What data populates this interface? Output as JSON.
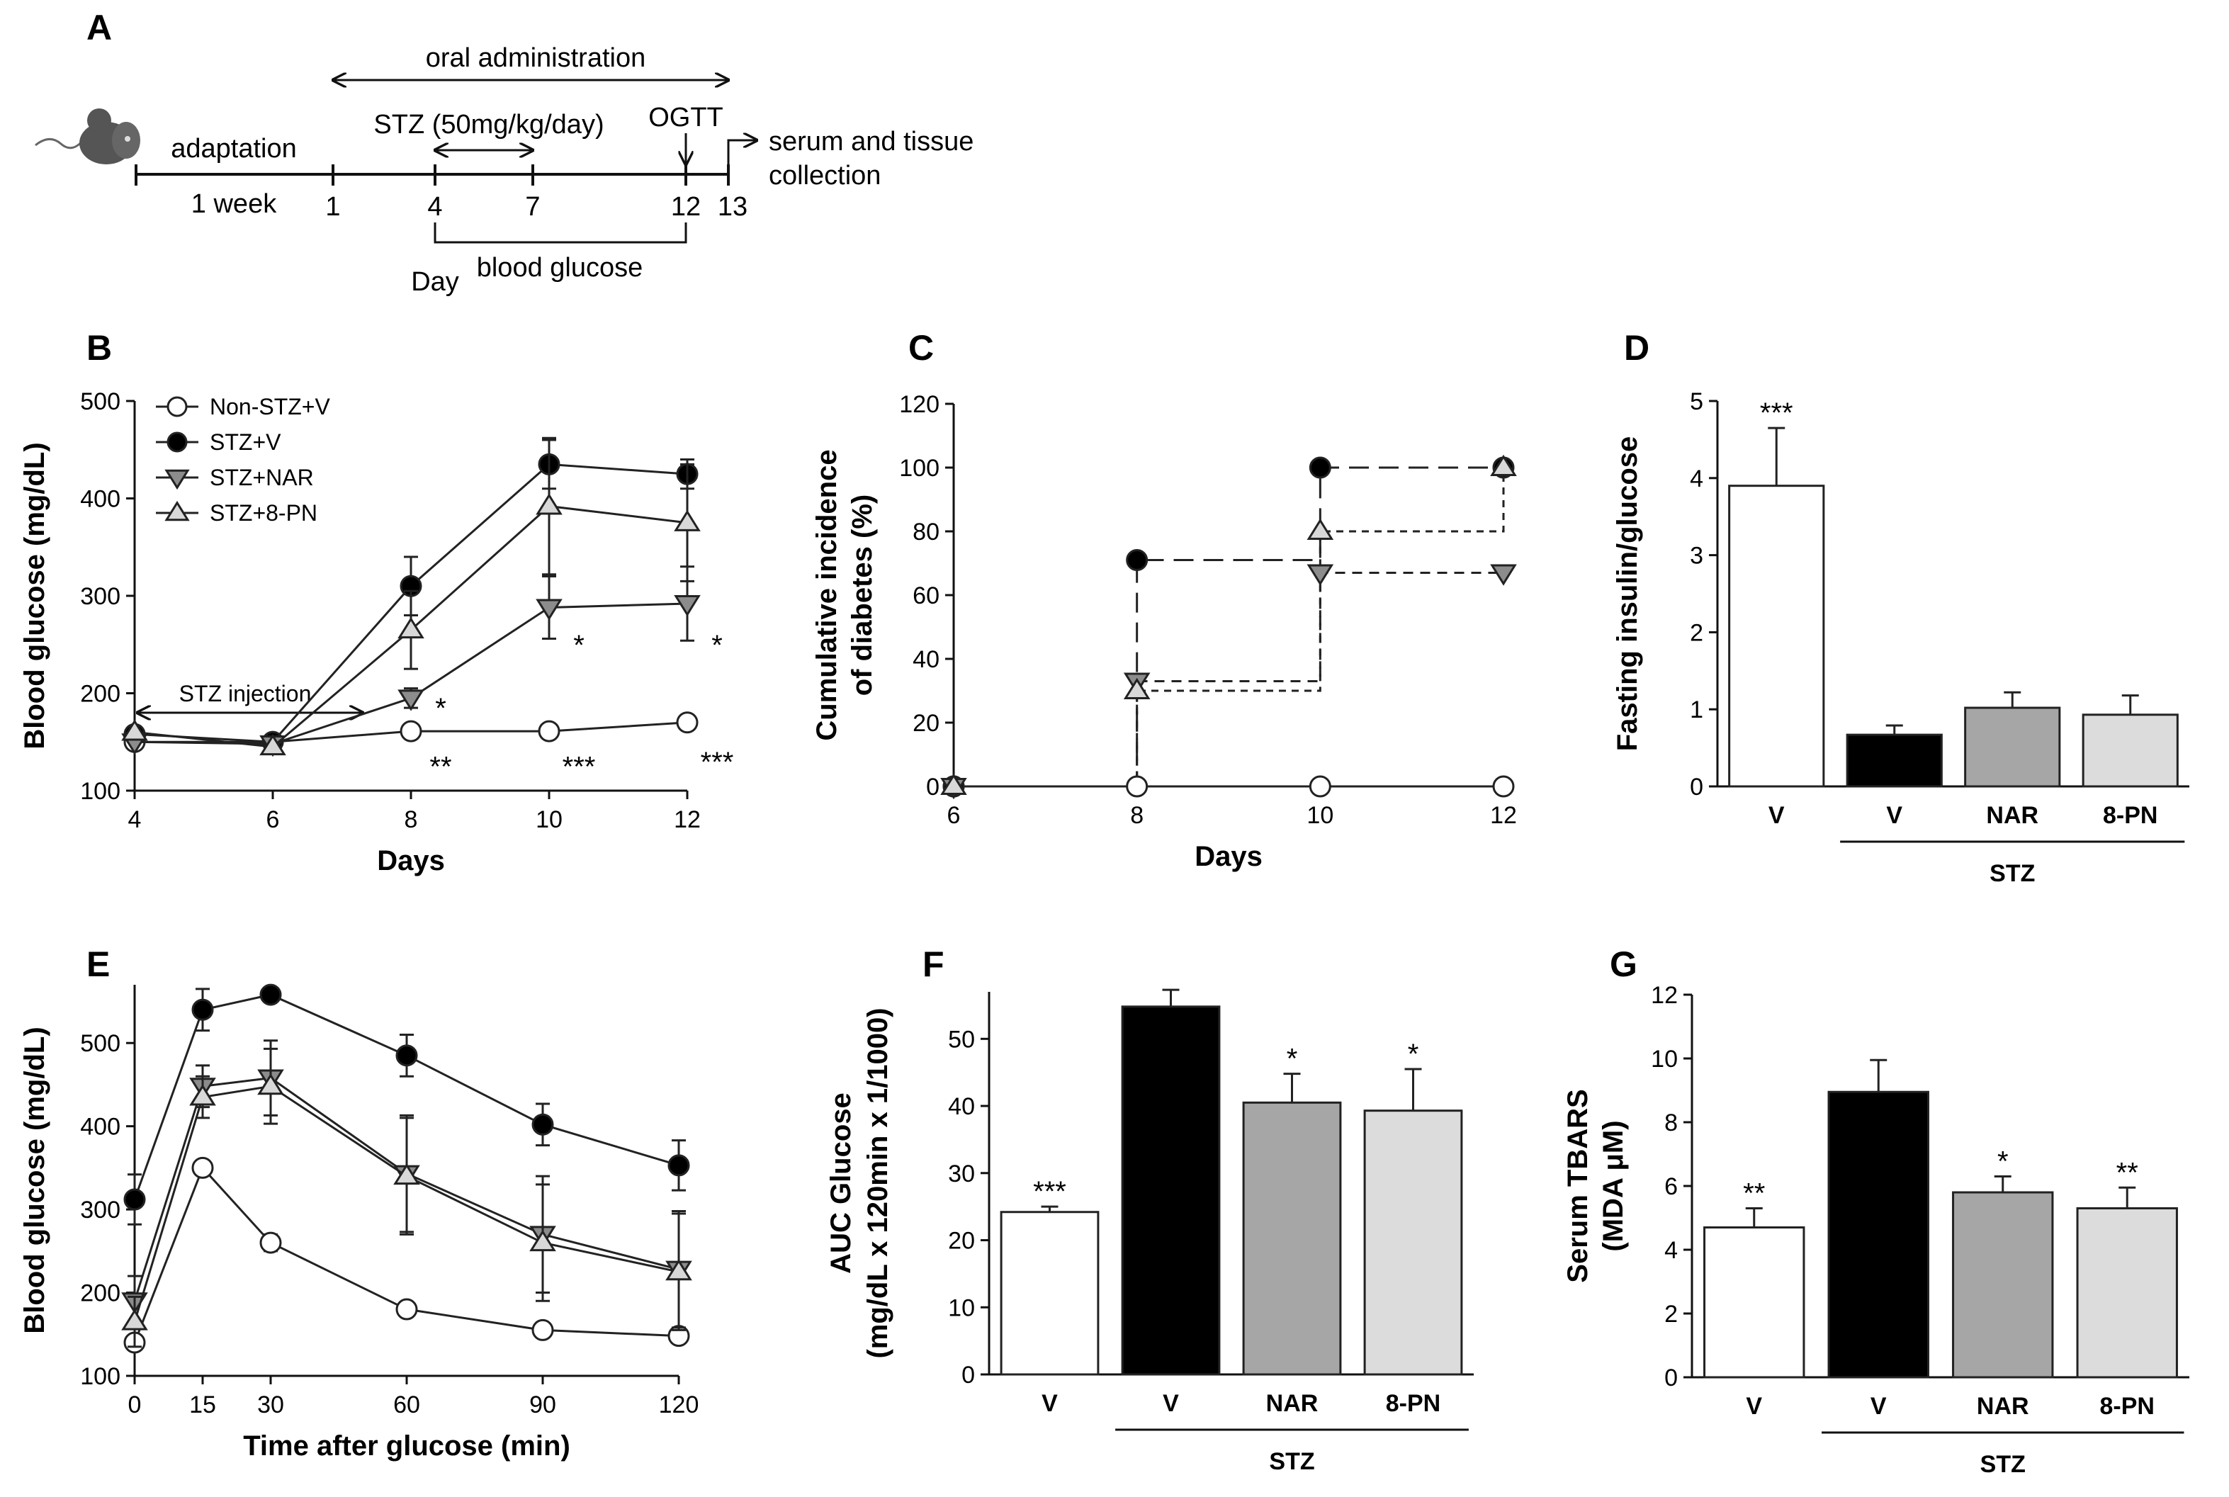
{
  "panels": {
    "A": {
      "letter": "A",
      "oral_administration": "oral administration",
      "adaptation": "adaptation",
      "stz_dose": "STZ (50mg/kg/day)",
      "ogtt": "OGTT",
      "serum_line1": "serum and tissue",
      "serum_line2": "collection",
      "one_week": "1 week",
      "day_ticks": [
        "1",
        "4",
        "7",
        "12",
        "13"
      ],
      "day_label": "Day",
      "blood_glucose": "blood glucose"
    },
    "B": {
      "letter": "B"
    },
    "C": {
      "letter": "C"
    },
    "D": {
      "letter": "D"
    },
    "E": {
      "letter": "E"
    },
    "F": {
      "letter": "F"
    },
    "G": {
      "letter": "G"
    }
  },
  "colors": {
    "non_stz": "#ffffff",
    "stz_v": "#000000",
    "stz_nar": "#8c8c8c",
    "stz_8pn": "#d8d8d8",
    "bar_nar": "#a6a6a6",
    "bar_8pn": "#dcdcdc"
  },
  "chart_data": [
    {
      "id": "B",
      "type": "line",
      "xlabel": "Days",
      "ylabel": "Blood glucose (mg/dL)",
      "x": [
        4,
        6,
        8,
        10,
        12
      ],
      "xlim": [
        4,
        12
      ],
      "xticks": [
        "4",
        "6",
        "8",
        "10",
        "12"
      ],
      "ylim": [
        100,
        500
      ],
      "yticks": [
        "100",
        "200",
        "300",
        "400",
        "500"
      ],
      "annotation": "STZ injection",
      "series": [
        {
          "name": "Non-STZ+V",
          "marker": "circle-open",
          "values": [
            150,
            150,
            161,
            161,
            170
          ],
          "err": [
            0,
            0,
            0,
            0,
            0
          ]
        },
        {
          "name": "STZ+V",
          "marker": "circle-filled",
          "values": [
            158,
            150,
            310,
            435,
            425
          ],
          "err": [
            0,
            0,
            30,
            25,
            15
          ]
        },
        {
          "name": "STZ+NAR",
          "marker": "triangle-down",
          "values": [
            150,
            148,
            195,
            288,
            292
          ],
          "err": [
            0,
            0,
            10,
            32,
            38
          ]
        },
        {
          "name": "STZ+8-PN",
          "marker": "triangle-up",
          "values": [
            160,
            145,
            265,
            392,
            375
          ],
          "err": [
            0,
            0,
            40,
            70,
            60
          ]
        }
      ],
      "significance": [
        {
          "x": 8,
          "y": 185,
          "text": "*"
        },
        {
          "x": 8,
          "y": 125,
          "text": "**"
        },
        {
          "x": 10,
          "y": 250,
          "text": "*"
        },
        {
          "x": 10,
          "y": 125,
          "text": "***"
        },
        {
          "x": 12,
          "y": 250,
          "text": "*"
        },
        {
          "x": 12,
          "y": 130,
          "text": "***"
        }
      ]
    },
    {
      "id": "C",
      "type": "line",
      "xlabel": "Days",
      "ylabel_line1": "Cumulative incidence",
      "ylabel_line2": "of diabetes (%)",
      "x": [
        6,
        8,
        10,
        12
      ],
      "xlim": [
        6,
        12
      ],
      "xticks": [
        "6",
        "8",
        "10",
        "12"
      ],
      "ylim": [
        0,
        120
      ],
      "yticks": [
        "0",
        "20",
        "40",
        "60",
        "80",
        "100",
        "120"
      ],
      "series": [
        {
          "name": "Non-STZ+V",
          "marker": "circle-open",
          "values": [
            0,
            0,
            0,
            0
          ]
        },
        {
          "name": "STZ+V",
          "marker": "circle-filled",
          "values": [
            0,
            71,
            100,
            100
          ]
        },
        {
          "name": "STZ+NAR",
          "marker": "triangle-down",
          "values": [
            0,
            33,
            67,
            67
          ]
        },
        {
          "name": "STZ+8-PN",
          "marker": "triangle-up",
          "values": [
            0,
            30,
            80,
            100
          ]
        }
      ]
    },
    {
      "id": "D",
      "type": "bar",
      "ylabel": "Fasting insulin/glucose",
      "categories": [
        "V",
        "V",
        "NAR",
        "8-PN"
      ],
      "group_label": "STZ",
      "values": [
        3.9,
        0.67,
        1.02,
        0.93
      ],
      "err": [
        0.75,
        0.12,
        0.2,
        0.25
      ],
      "ylim": [
        0,
        5
      ],
      "yticks": [
        "0",
        "1",
        "2",
        "3",
        "4",
        "5"
      ],
      "significance": [
        "***",
        "",
        "",
        ""
      ]
    },
    {
      "id": "E",
      "type": "line",
      "xlabel": "Time after glucose (min)",
      "ylabel": "Blood glucose (mg/dL)",
      "x": [
        0,
        15,
        30,
        60,
        90,
        120
      ],
      "xlim": [
        0,
        120
      ],
      "xticks": [
        "0",
        "15",
        "30",
        "60",
        "90",
        "120"
      ],
      "ylim": [
        100,
        570
      ],
      "yticks": [
        "100",
        "200",
        "300",
        "400",
        "500"
      ],
      "series": [
        {
          "name": "Non-STZ+V",
          "marker": "circle-open",
          "values": [
            140,
            350,
            260,
            180,
            155,
            148
          ],
          "err": [
            0,
            0,
            10,
            0,
            0,
            0
          ]
        },
        {
          "name": "STZ+V",
          "marker": "circle-filled",
          "values": [
            312,
            540,
            558,
            485,
            402,
            353
          ],
          "err": [
            30,
            25,
            0,
            25,
            25,
            30
          ]
        },
        {
          "name": "STZ+NAR",
          "marker": "triangle-down",
          "values": [
            190,
            448,
            458,
            343,
            270,
            228
          ],
          "err": [
            30,
            25,
            45,
            70,
            70,
            70
          ]
        },
        {
          "name": "STZ+8-PN",
          "marker": "triangle-up",
          "values": [
            165,
            435,
            448,
            340,
            260,
            225
          ],
          "err": [
            30,
            25,
            45,
            70,
            70,
            70
          ]
        }
      ]
    },
    {
      "id": "F",
      "type": "bar",
      "ylabel_line1": "AUC Glucose",
      "ylabel_line2": "(mg/dL x 120min x 1/1000)",
      "categories": [
        "V",
        "V",
        "NAR",
        "8-PN"
      ],
      "group_label": "STZ",
      "values": [
        24.2,
        54.8,
        40.5,
        39.3
      ],
      "err": [
        0.8,
        2.5,
        4.3,
        6.2
      ],
      "ylim": [
        0,
        57
      ],
      "yticks": [
        "0",
        "10",
        "20",
        "30",
        "40",
        "50"
      ],
      "significance": [
        "***",
        "",
        "*",
        "*"
      ]
    },
    {
      "id": "G",
      "type": "bar",
      "ylabel_line1": "Serum TBARS",
      "ylabel_line2": "(MDA μM)",
      "categories": [
        "V",
        "V",
        "NAR",
        "8-PN"
      ],
      "group_label": "STZ",
      "values": [
        4.7,
        8.95,
        5.8,
        5.3
      ],
      "err": [
        0.6,
        1.0,
        0.5,
        0.65
      ],
      "ylim": [
        0,
        12
      ],
      "yticks": [
        "0",
        "2",
        "4",
        "6",
        "8",
        "10",
        "12"
      ],
      "significance": [
        "**",
        "",
        "*",
        "**"
      ]
    }
  ]
}
